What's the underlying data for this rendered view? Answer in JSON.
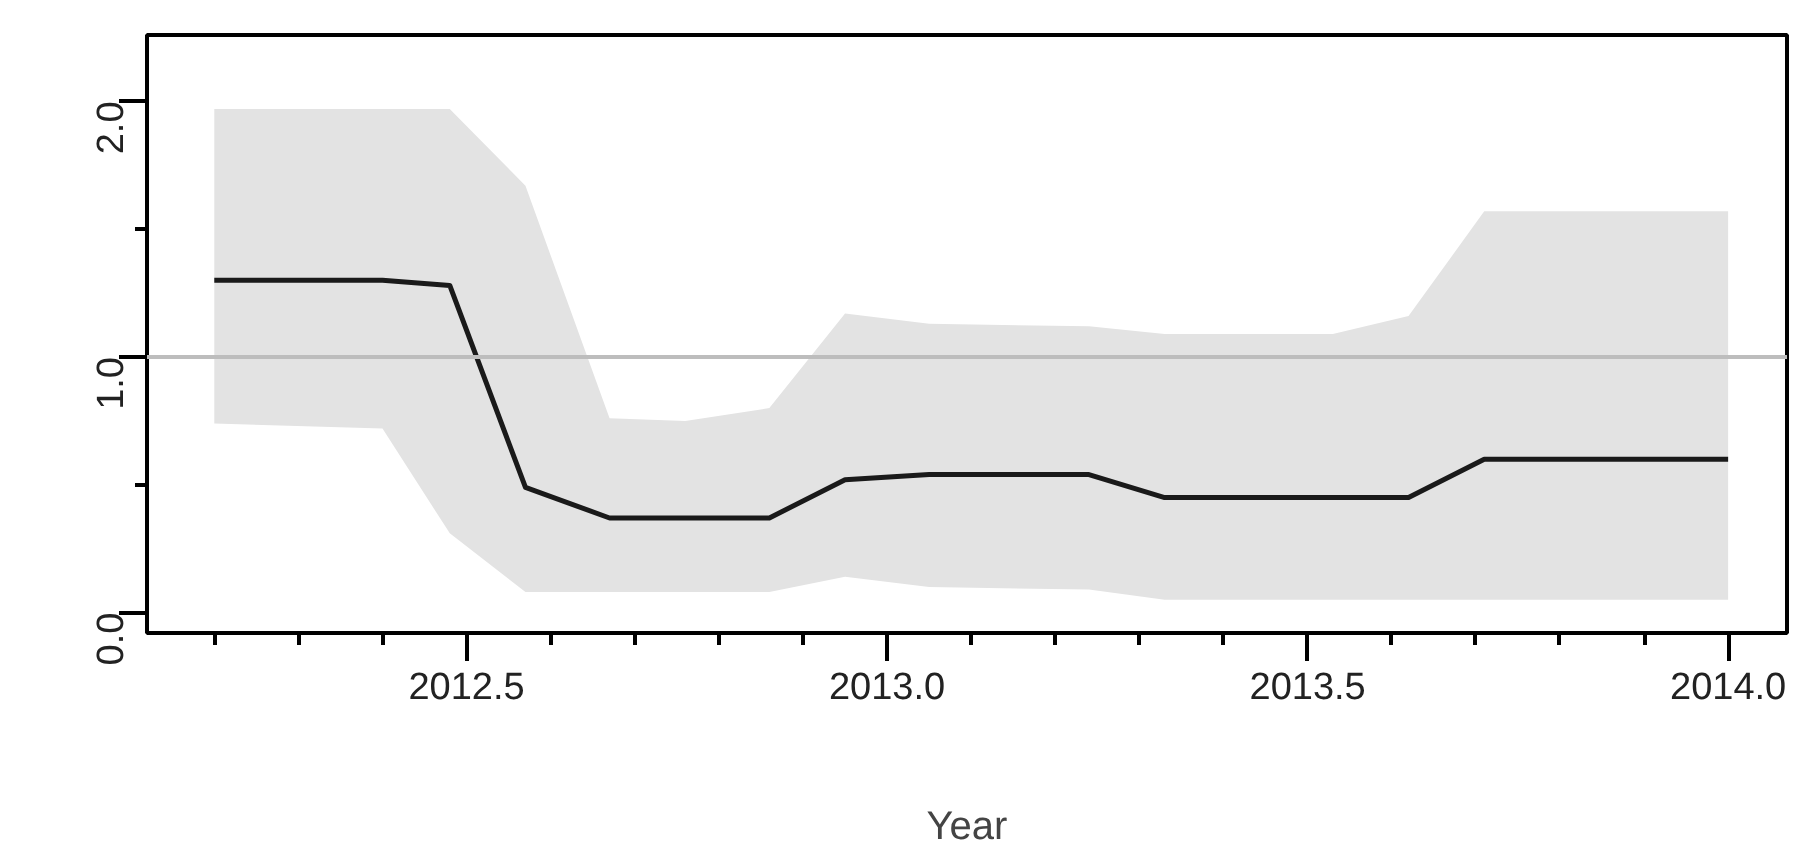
{
  "chart_data": {
    "type": "line",
    "xlabel": "Year",
    "x": [
      2012.2,
      2012.4,
      2012.48,
      2012.57,
      2012.67,
      2012.76,
      2012.86,
      2012.95,
      2013.05,
      2013.24,
      2013.33,
      2013.53,
      2013.62,
      2013.71,
      2014.0
    ],
    "series": [
      {
        "color": "#1a1a1a",
        "values": [
          1.3,
          1.3,
          1.28,
          0.49,
          0.37,
          0.37,
          0.37,
          0.52,
          0.54,
          0.54,
          0.45,
          0.45,
          0.45,
          0.6,
          0.6
        ],
        "lower": [
          0.74,
          0.72,
          0.31,
          0.08,
          0.08,
          0.08,
          0.08,
          0.14,
          0.1,
          0.09,
          0.05,
          0.05,
          0.05,
          0.05,
          0.05
        ],
        "upper": [
          1.97,
          1.97,
          1.97,
          1.67,
          0.76,
          0.75,
          0.8,
          1.17,
          1.13,
          1.12,
          1.09,
          1.09,
          1.16,
          1.57,
          1.57
        ]
      }
    ],
    "ref_lines": [
      {
        "axis": "y",
        "value": 1.0,
        "label": null,
        "color": "#bdbdbd"
      }
    ],
    "xlim": [
      2012.12,
      2014.07
    ],
    "ylim": [
      -0.08,
      2.26
    ],
    "xticks": [
      {
        "value": 2012.2,
        "label": null
      },
      {
        "value": 2012.3,
        "label": null
      },
      {
        "value": 2012.4,
        "label": null
      },
      {
        "value": 2012.5,
        "label": "2012.5"
      },
      {
        "value": 2012.6,
        "label": null
      },
      {
        "value": 2012.7,
        "label": null
      },
      {
        "value": 2012.8,
        "label": null
      },
      {
        "value": 2012.9,
        "label": null
      },
      {
        "value": 2013.0,
        "label": "2013.0"
      },
      {
        "value": 2013.1,
        "label": null
      },
      {
        "value": 2013.2,
        "label": null
      },
      {
        "value": 2013.3,
        "label": null
      },
      {
        "value": 2013.4,
        "label": null
      },
      {
        "value": 2013.5,
        "label": "2013.5"
      },
      {
        "value": 2013.6,
        "label": null
      },
      {
        "value": 2013.7,
        "label": null
      },
      {
        "value": 2013.8,
        "label": null
      },
      {
        "value": 2013.9,
        "label": null
      },
      {
        "value": 2014.0,
        "label": "2014.0"
      }
    ],
    "yticks": [
      {
        "value": 0,
        "label": "0.0"
      },
      {
        "value": 0.5,
        "label": null
      },
      {
        "value": 1.0,
        "label": "1.0"
      },
      {
        "value": 1.5,
        "label": null
      },
      {
        "value": 2.0,
        "label": "2.0"
      }
    ],
    "grid": false,
    "line_style": "solid",
    "marker": "none"
  }
}
